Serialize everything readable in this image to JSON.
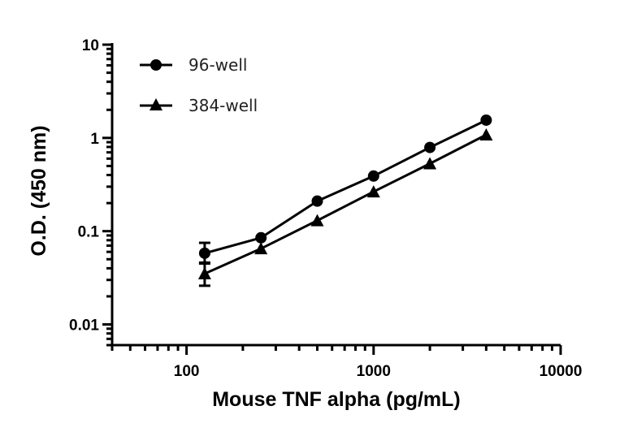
{
  "chart_data": {
    "type": "scatter",
    "title": "",
    "xlabel": "Mouse TNF alpha (pg/mL)",
    "ylabel": "O.D. (450 nm)",
    "xscale": "log",
    "yscale": "log",
    "xlim": [
      40,
      10000
    ],
    "ylim": [
      0.006,
      10
    ],
    "xticks": [
      100,
      1000,
      10000
    ],
    "xtick_labels": [
      "100",
      "1000",
      "10000"
    ],
    "yticks": [
      0.01,
      0.1,
      1,
      10
    ],
    "ytick_labels": [
      "0.01",
      "0.1",
      "1",
      "10"
    ],
    "grid": false,
    "legend_position": "top-left",
    "x": [
      125,
      250,
      500,
      1000,
      2000,
      4000
    ],
    "series": [
      {
        "name": "96-well",
        "marker": "circle",
        "values": [
          0.058,
          0.085,
          0.21,
          0.39,
          0.79,
          1.55
        ],
        "error_low": [
          0.045,
          null,
          null,
          null,
          null,
          null
        ],
        "error_high": [
          0.075,
          null,
          null,
          null,
          null,
          null
        ]
      },
      {
        "name": "384-well",
        "marker": "triangle",
        "values": [
          0.035,
          0.065,
          0.13,
          0.265,
          0.53,
          1.08
        ],
        "error_low": [
          0.026,
          null,
          null,
          null,
          null,
          null
        ],
        "error_high": [
          0.046,
          null,
          null,
          null,
          null,
          null
        ]
      }
    ],
    "color": "#000000"
  }
}
